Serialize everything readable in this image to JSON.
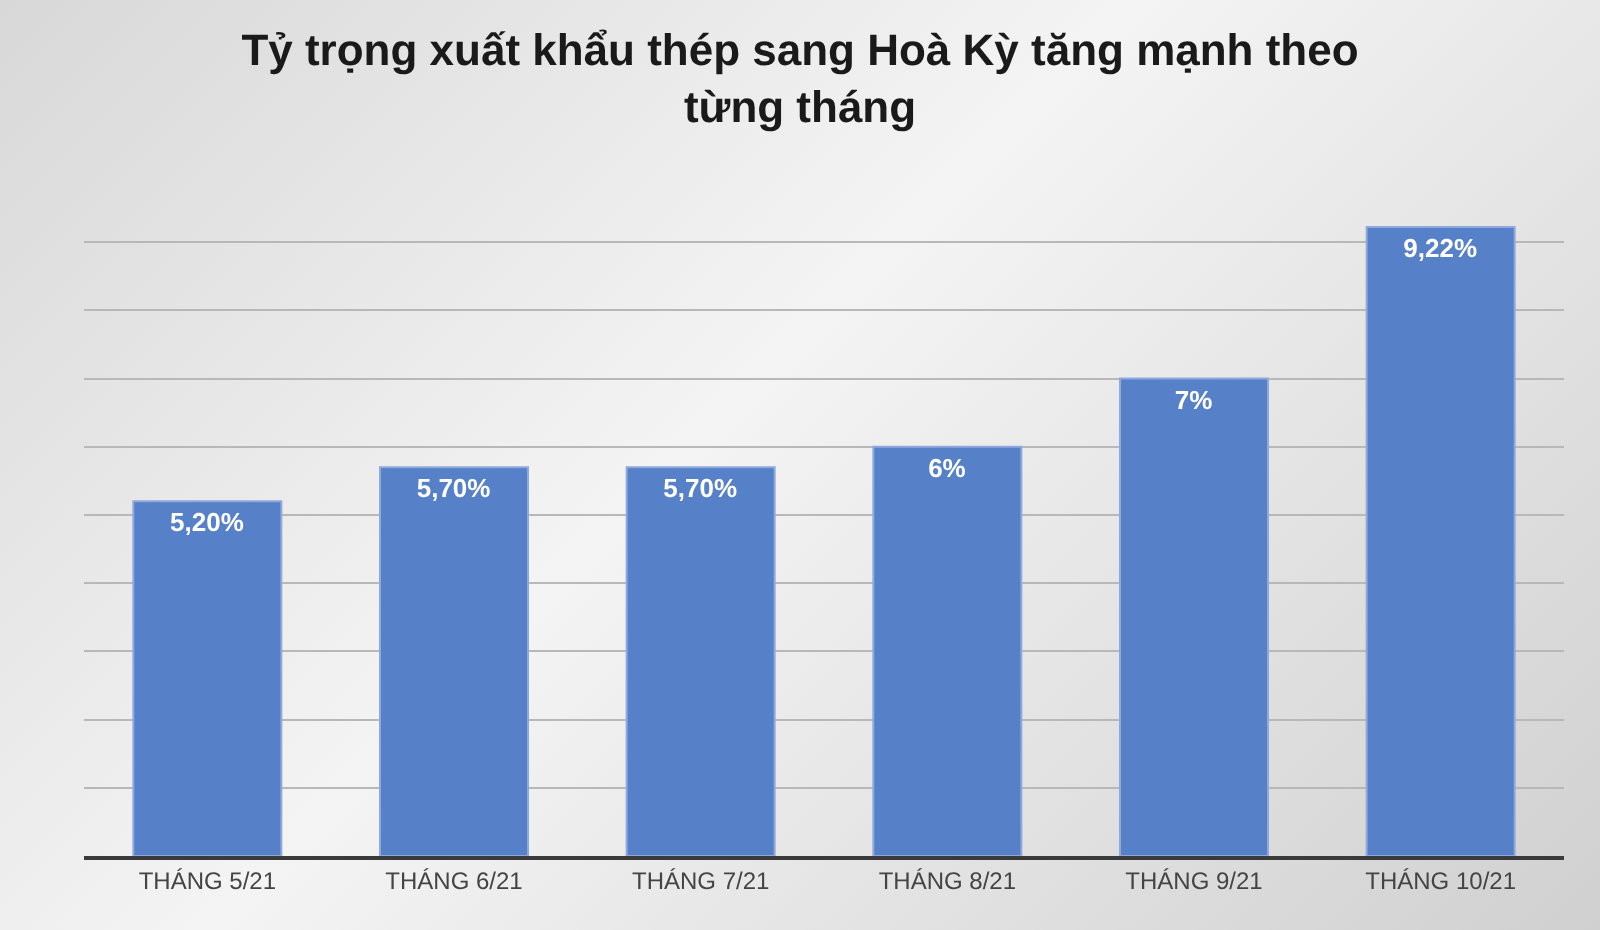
{
  "chart_data": {
    "type": "bar",
    "title": "Tỷ trọng xuất khẩu thép sang Hoà Kỳ tăng mạnh theo\ntừng tháng",
    "categories": [
      "THÁNG 5/21",
      "THÁNG 6/21",
      "THÁNG 7/21",
      "THÁNG 8/21",
      "THÁNG 9/21",
      "THÁNG 10/21"
    ],
    "values": [
      5.2,
      5.7,
      5.7,
      6,
      7,
      9.22
    ],
    "value_labels": [
      "5,20%",
      "5,70%",
      "5,70%",
      "6%",
      "7%",
      "9,22%"
    ],
    "color": "#5681c9",
    "tick_labels": "x",
    "grid": "y"
  }
}
